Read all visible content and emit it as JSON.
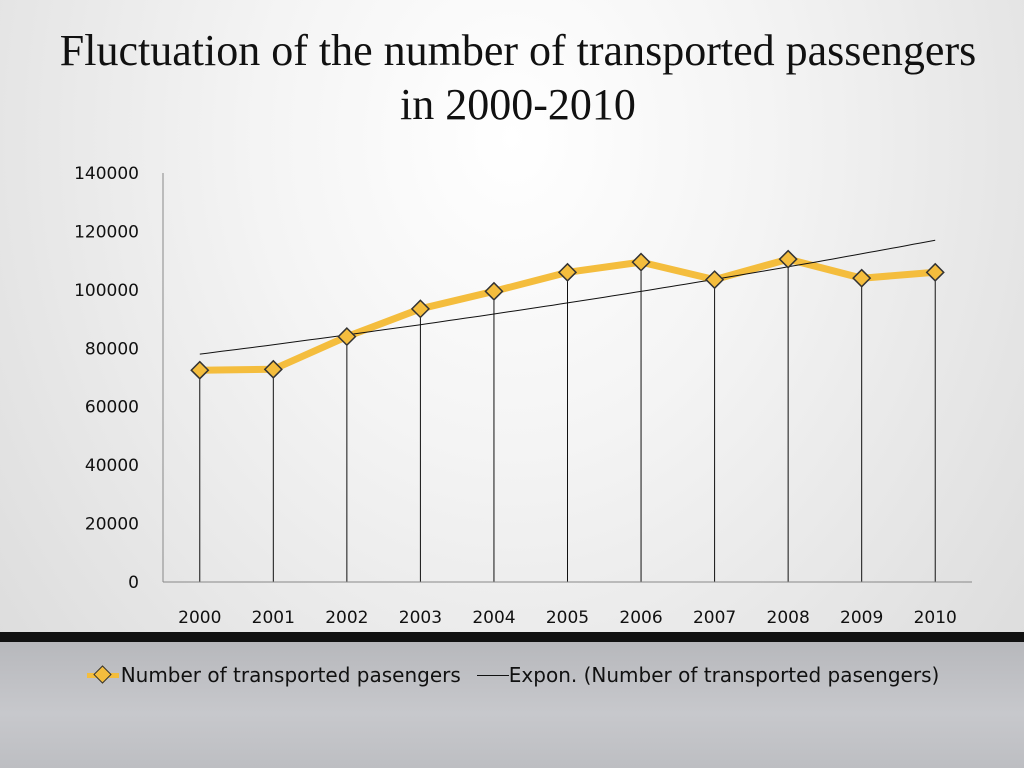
{
  "slide": {
    "title": "Fluctuation of the number of transported passengers in 2000-2010"
  },
  "colors": {
    "series_line": "#f4bd3d",
    "marker_fill": "#f4bd3d",
    "marker_stroke": "#333333",
    "trendline": "#111111",
    "drop_lines": "#111111"
  },
  "chart_data": {
    "type": "line",
    "title": "Fluctuation of the number of transported passengers in 2000-2010",
    "xlabel": "",
    "ylabel": "",
    "categories": [
      "2000",
      "2001",
      "2002",
      "2003",
      "2004",
      "2005",
      "2006",
      "2007",
      "2008",
      "2009",
      "2010"
    ],
    "ylim": [
      0,
      140000
    ],
    "yticks": [
      0,
      20000,
      40000,
      60000,
      80000,
      100000,
      120000,
      140000
    ],
    "grid": false,
    "drop_lines": true,
    "legend_position": "bottom",
    "series": [
      {
        "name": "Number of transported pasengers",
        "values": [
          72500,
          72800,
          84000,
          93500,
          99500,
          106000,
          109500,
          103500,
          110500,
          104000,
          106000
        ]
      }
    ],
    "trendline": {
      "name": "Expon. (Number of transported pasengers)",
      "type": "exponential",
      "start_value": 78000,
      "end_value": 117000
    }
  },
  "legend": {
    "series_label": "Number of transported pasengers",
    "trend_label": "Expon. (Number of transported pasengers)"
  }
}
